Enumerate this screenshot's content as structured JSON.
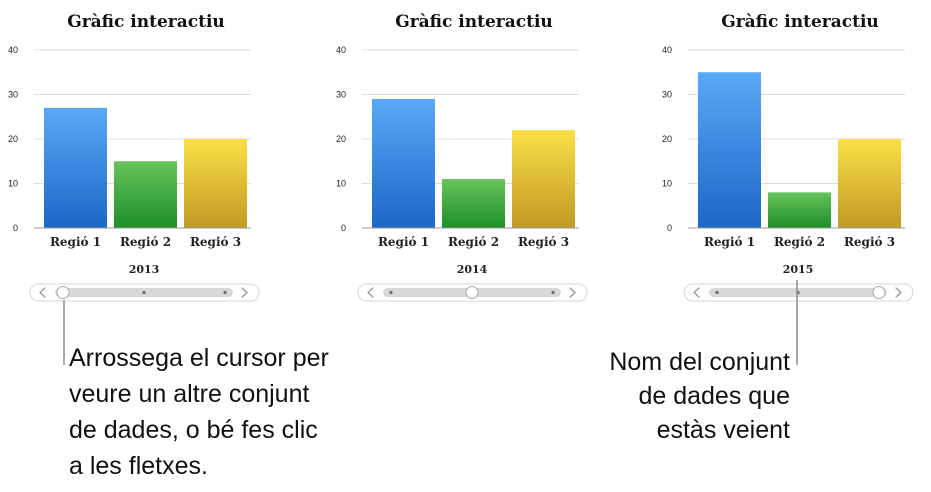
{
  "colors": {
    "blue_top": "#5aa9f6",
    "blue_bottom": "#1a67c6",
    "green_top": "#67c35c",
    "green_bottom": "#1e8f2a",
    "yellow_top": "#fbdf46",
    "yellow_bottom": "#c09a25"
  },
  "chart_data": [
    {
      "type": "bar",
      "title": "Gràfic interactiu",
      "categories": [
        "Regió 1",
        "Regió 2",
        "Regió 3"
      ],
      "values": [
        27,
        15,
        20
      ],
      "dataset_label": "2013",
      "yticks": [
        "0",
        "10",
        "20",
        "30",
        "40"
      ],
      "ylim": [
        0,
        40
      ],
      "grid": true,
      "slider": {
        "active_index": 0,
        "total": 3
      }
    },
    {
      "type": "bar",
      "title": "Gràfic interactiu",
      "categories": [
        "Regió 1",
        "Regió 2",
        "Regió 3"
      ],
      "values": [
        29,
        11,
        22
      ],
      "dataset_label": "2014",
      "yticks": [
        "0",
        "10",
        "20",
        "30",
        "40"
      ],
      "ylim": [
        0,
        40
      ],
      "grid": true,
      "slider": {
        "active_index": 1,
        "total": 3
      }
    },
    {
      "type": "bar",
      "title": "Gràfic interactiu",
      "categories": [
        "Regió 1",
        "Regió 2",
        "Regió 3"
      ],
      "values": [
        35,
        8,
        20
      ],
      "dataset_label": "2015",
      "yticks": [
        "0",
        "10",
        "20",
        "30",
        "40"
      ],
      "ylim": [
        0,
        40
      ],
      "grid": true,
      "slider": {
        "active_index": 2,
        "total": 3
      }
    }
  ],
  "callouts": {
    "left": [
      "Arrossega el cursor per",
      "veure un altre conjunt",
      "de dades, o bé fes clic",
      "a les fletxes."
    ],
    "right": [
      "Nom del conjunt",
      "de dades que",
      "estàs veient"
    ]
  }
}
